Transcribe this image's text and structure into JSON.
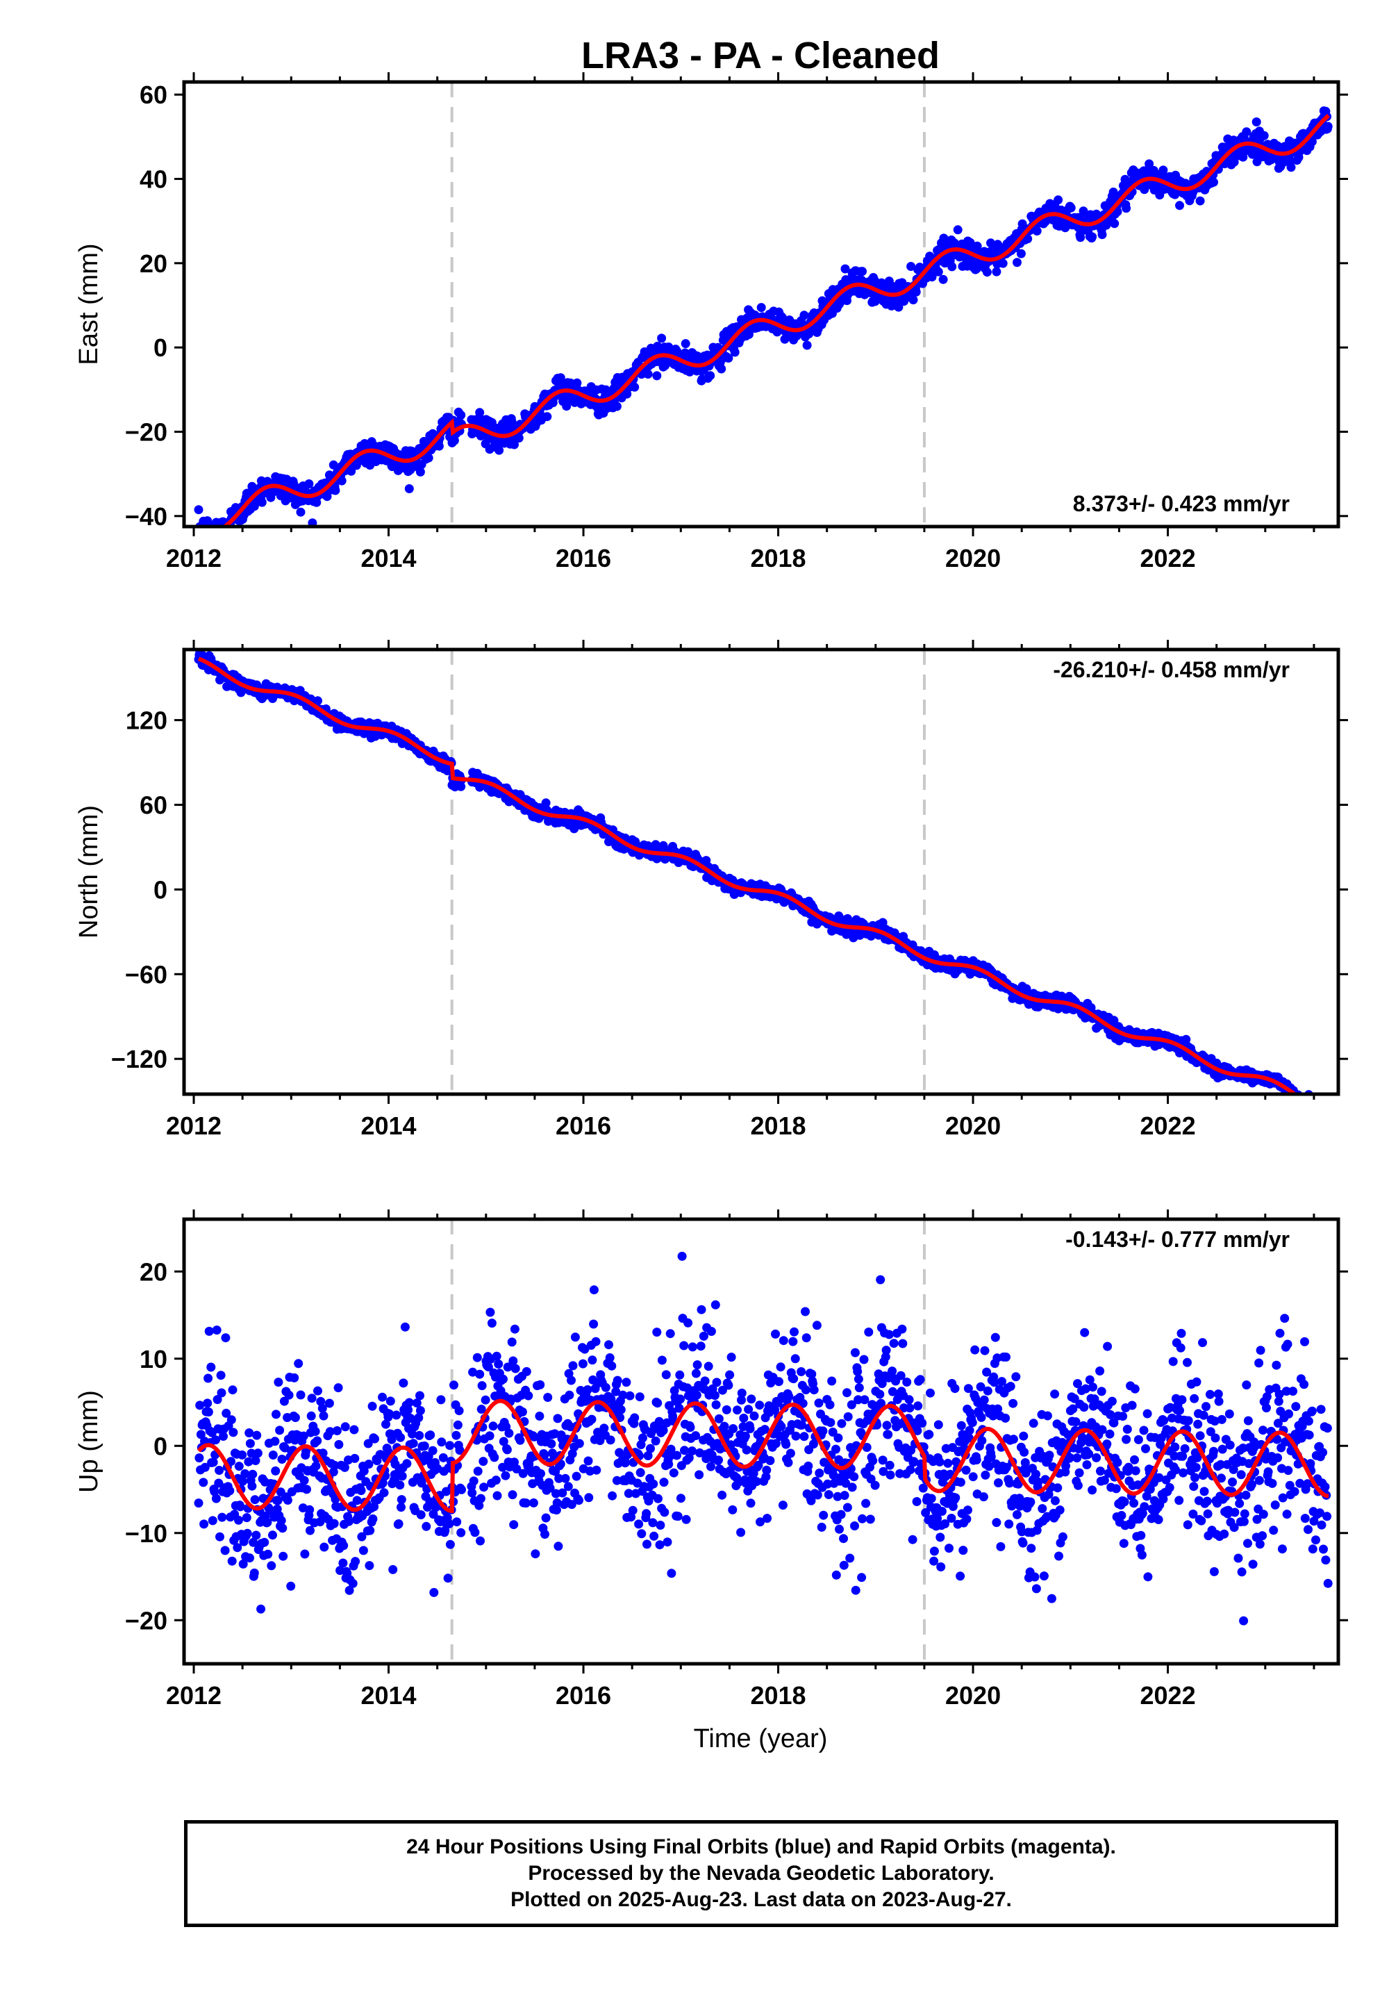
{
  "title": "LRA3  - PA - Cleaned",
  "xlabel": "Time (year)",
  "footer": {
    "line1": "24 Hour Positions Using Final Orbits (blue) and Rapid Orbits (magenta).",
    "line2": "Processed by the Nevada Geodetic Laboratory.",
    "line3": "Plotted on 2025-Aug-23. Last data on 2023-Aug-27."
  },
  "colors": {
    "data": "#0000ff",
    "model": "#ff0000",
    "breaks": "#c8c8c8"
  },
  "chart_data": [
    {
      "type": "scatter",
      "component": "east",
      "ylabel": "East (mm)",
      "rate_label": "8.373+/- 0.423 mm/yr",
      "xlim": [
        2011.9,
        2023.75
      ],
      "ylim": [
        -42.5,
        63
      ],
      "xticks": [
        2012,
        2014,
        2016,
        2018,
        2020,
        2022
      ],
      "yticks": [
        -40,
        -20,
        0,
        20,
        40,
        60
      ],
      "breaks": [
        2014.65,
        2019.5
      ],
      "rate": 8.373,
      "offset": -42.0,
      "amplitude": 3.0,
      "phase": 0.5,
      "noise": 1.6,
      "jumps": [
        {
          "at": 2014.65,
          "size": -2.5
        },
        {
          "at": 2019.5,
          "size": 0
        }
      ],
      "model_line": true
    },
    {
      "type": "scatter",
      "component": "north",
      "ylabel": "North (mm)",
      "rate_label": "-26.210+/- 0.458 mm/yr",
      "xlim": [
        2011.9,
        2023.75
      ],
      "ylim": [
        -145,
        170
      ],
      "xticks": [
        2012,
        2014,
        2016,
        2018,
        2020,
        2022
      ],
      "yticks": [
        -120,
        -60,
        0,
        60,
        120
      ],
      "breaks": [
        2014.65,
        2019.5
      ],
      "rate": -26.21,
      "offset": 160,
      "amplitude": 3.5,
      "phase": 0.2,
      "noise": 2.5,
      "jumps": [
        {
          "at": 2014.65,
          "size": -10
        },
        {
          "at": 2019.5,
          "size": 0
        }
      ],
      "model_line": true
    },
    {
      "type": "scatter",
      "component": "up",
      "ylabel": "Up (mm)",
      "rate_label": "-0.143+/- 0.777 mm/yr",
      "xlim": [
        2011.9,
        2023.75
      ],
      "ylim": [
        -25,
        26
      ],
      "xticks": [
        2012,
        2014,
        2016,
        2018,
        2020,
        2022
      ],
      "yticks": [
        -20,
        -10,
        0,
        10,
        20
      ],
      "breaks": [
        2014.65,
        2019.5
      ],
      "rate": -0.143,
      "offset": -3.5,
      "amplitude": 3.6,
      "phase": 0.1,
      "noise": 5.0,
      "jumps": [
        {
          "at": 2014.65,
          "size": 5.5
        },
        {
          "at": 2019.5,
          "size": -2.5
        }
      ],
      "model_line": true
    }
  ]
}
